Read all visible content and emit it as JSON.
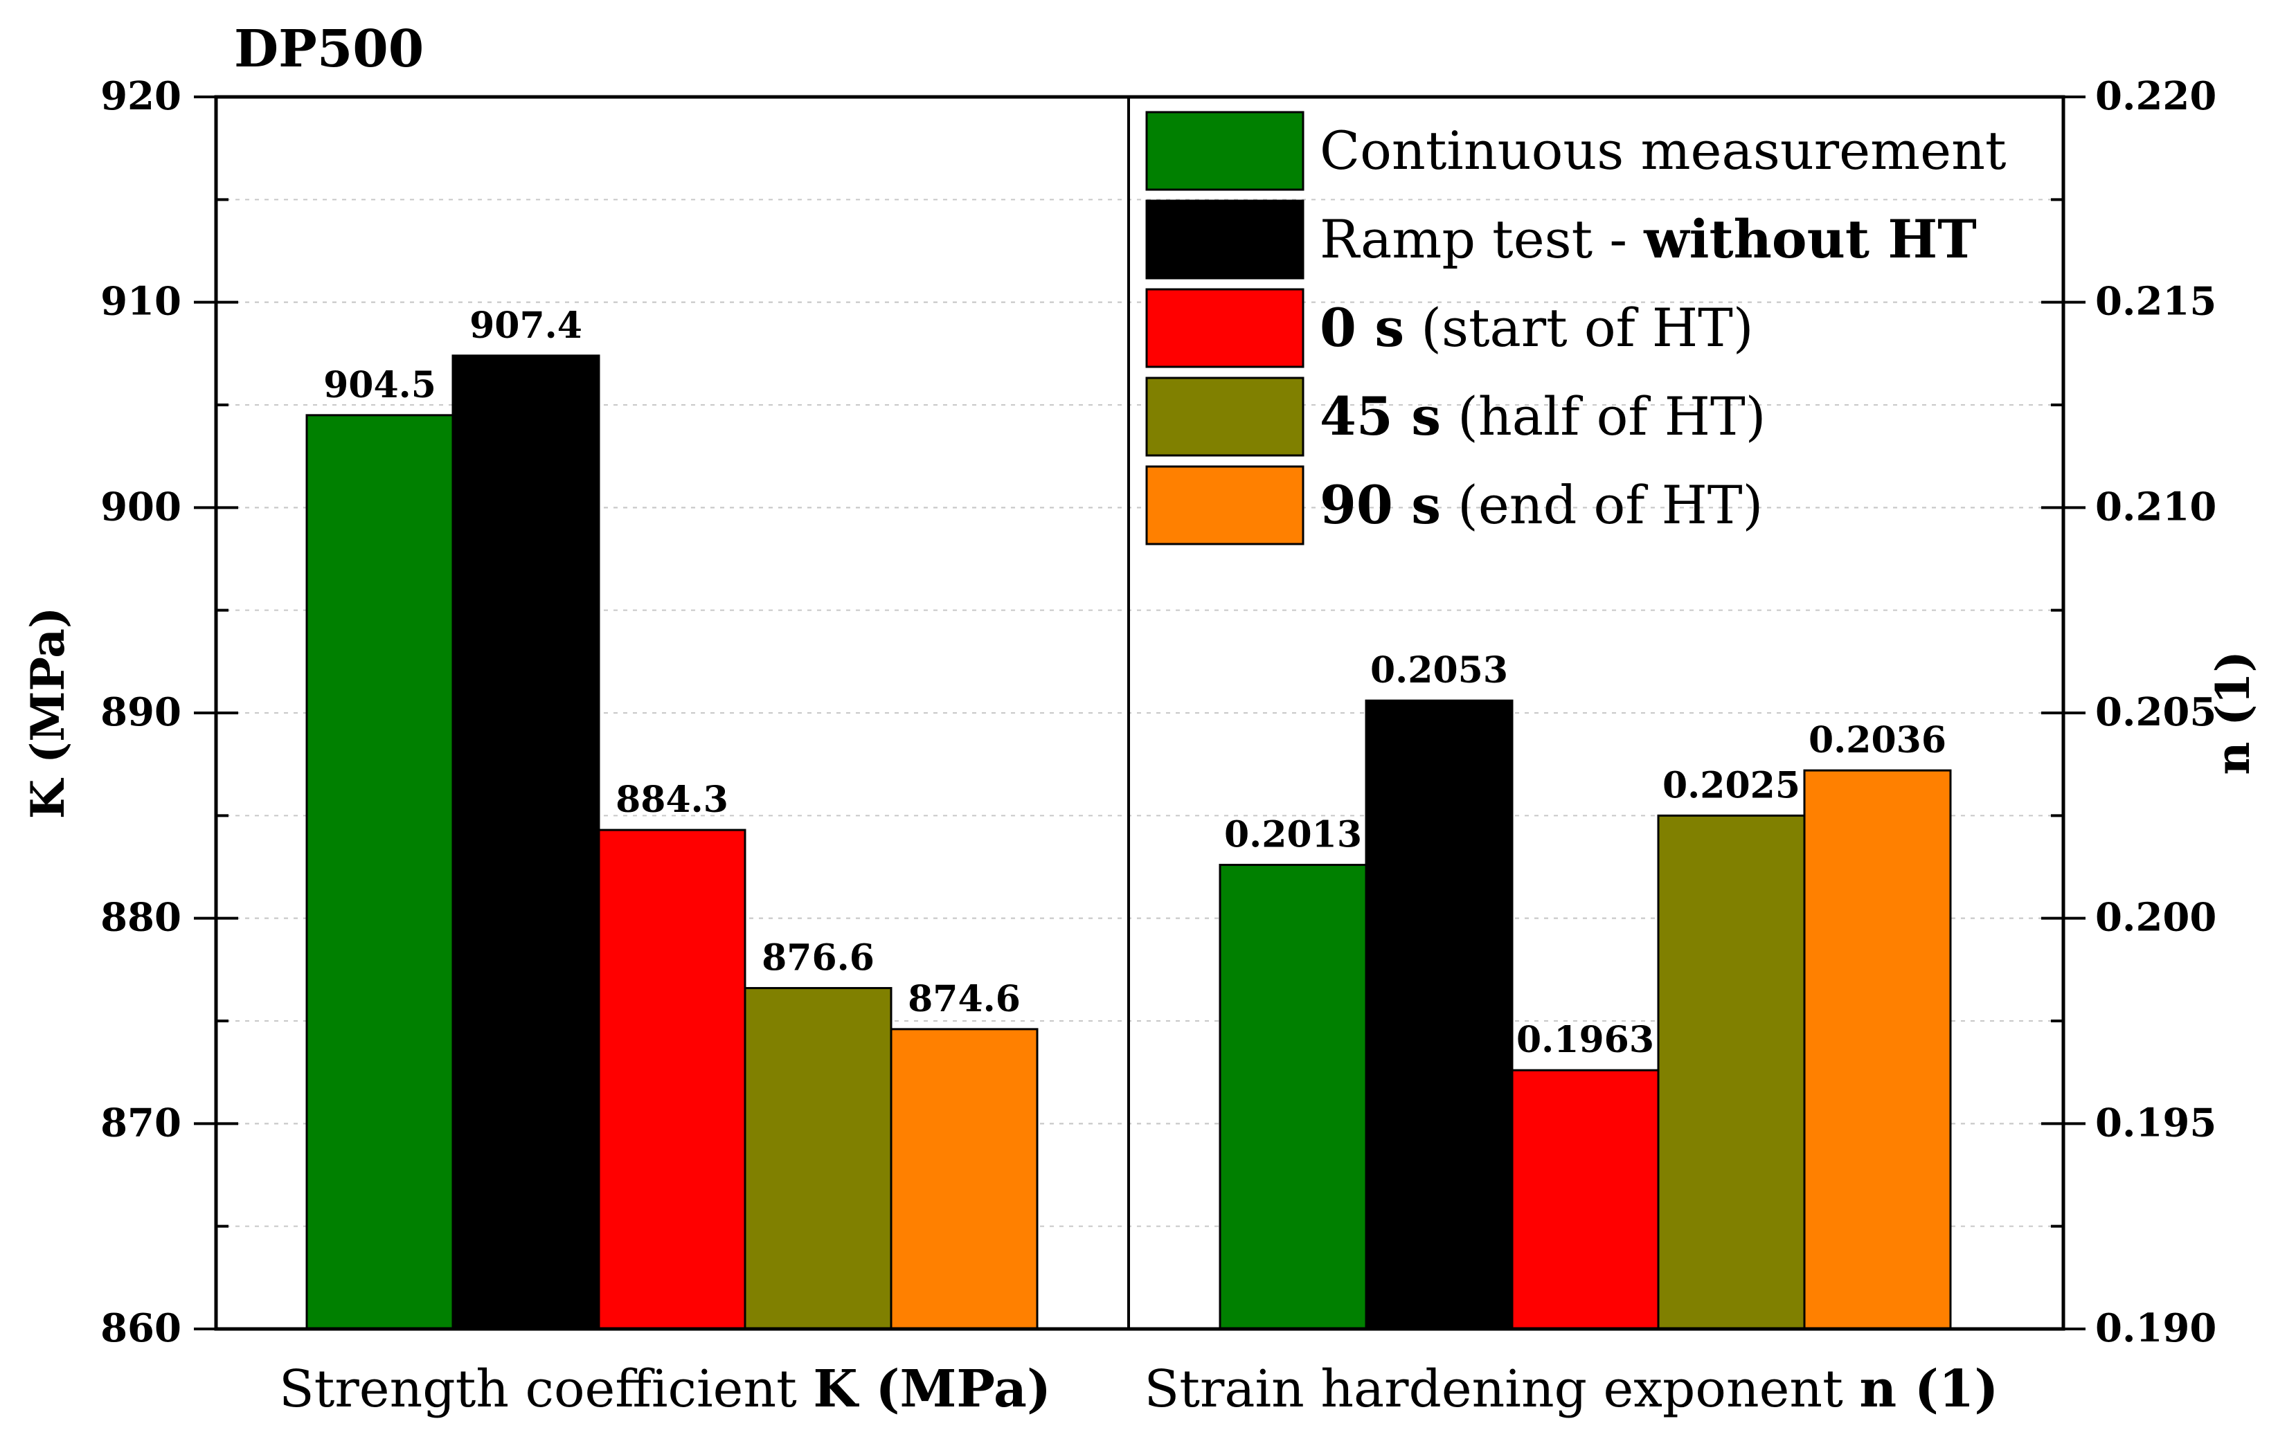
{
  "chart_data": {
    "type": "bar",
    "title": "DP500",
    "groups": [
      {
        "category_parts": [
          {
            "text": "Strength coefficient ",
            "bold": false
          },
          {
            "text": "K (MPa)",
            "bold": true
          }
        ],
        "axis": "left",
        "values": [
          904.5,
          907.4,
          884.3,
          876.6,
          874.6
        ],
        "labels": [
          "904.5",
          "907.4",
          "884.3",
          "876.6",
          "874.6"
        ]
      },
      {
        "category_parts": [
          {
            "text": "Strain hardening exponent ",
            "bold": false
          },
          {
            "text": "n (1)",
            "bold": true
          }
        ],
        "axis": "right",
        "values": [
          0.2013,
          0.2053,
          0.1963,
          0.2025,
          0.2036
        ],
        "labels": [
          "0.2013",
          "0.2053",
          "0.1963",
          "0.2025",
          "0.2036"
        ]
      }
    ],
    "series": [
      {
        "name": "Continuous measurement",
        "color": "#008000",
        "legend_parts": [
          {
            "text": "Continuous measurement",
            "bold": false
          }
        ]
      },
      {
        "name": "Ramp test - without HT",
        "color": "#000000",
        "legend_parts": [
          {
            "text": "Ramp test - ",
            "bold": false
          },
          {
            "text": "without HT",
            "bold": true
          }
        ]
      },
      {
        "name": "0 s (start of HT)",
        "color": "#ff0000",
        "legend_parts": [
          {
            "text": "0 s",
            "bold": true
          },
          {
            "text": " (start of HT)",
            "bold": false
          }
        ]
      },
      {
        "name": "45 s (half of HT)",
        "color": "#808000",
        "legend_parts": [
          {
            "text": "45 s",
            "bold": true
          },
          {
            "text": " (half of HT)",
            "bold": false
          }
        ]
      },
      {
        "name": "90 s (end of HT)",
        "color": "#ff8000",
        "legend_parts": [
          {
            "text": "90 s",
            "bold": true
          },
          {
            "text": " (end of HT)",
            "bold": false
          }
        ]
      }
    ],
    "y_left": {
      "label": "K (MPa)",
      "ylim": [
        860,
        920
      ],
      "ticks": [
        860,
        870,
        880,
        890,
        900,
        910,
        920
      ],
      "tick_labels": [
        "860",
        "870",
        "880",
        "890",
        "900",
        "910",
        "920"
      ]
    },
    "y_right": {
      "label": "n (1)",
      "ylim": [
        0.19,
        0.22
      ],
      "ticks": [
        0.19,
        0.195,
        0.2,
        0.205,
        0.21,
        0.215,
        0.22
      ],
      "tick_labels": [
        "0.190",
        "0.195",
        "0.200",
        "0.205",
        "0.210",
        "0.215",
        "0.220"
      ]
    },
    "grid": true,
    "legend_position": "top-right"
  }
}
